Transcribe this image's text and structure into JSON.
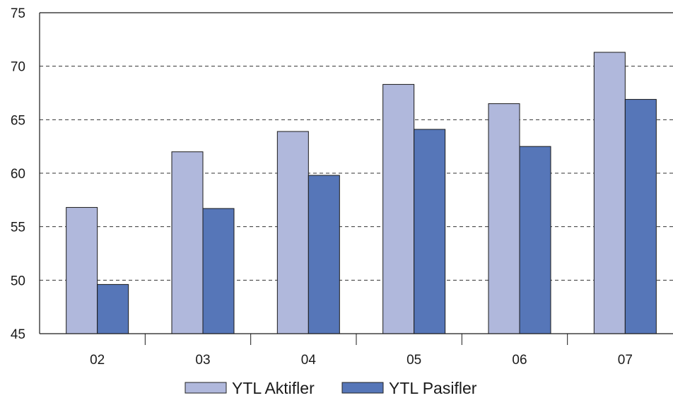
{
  "chart_data": {
    "type": "bar",
    "categories": [
      "02",
      "03",
      "04",
      "05",
      "06",
      "07"
    ],
    "series": [
      {
        "name": "YTL Aktifler",
        "values": [
          56.8,
          62.0,
          63.9,
          68.3,
          66.5,
          71.3
        ],
        "color": "#b0b8dc"
      },
      {
        "name": "YTL Pasifler",
        "values": [
          49.6,
          56.7,
          59.8,
          64.1,
          62.5,
          66.9
        ],
        "color": "#5676b8"
      }
    ],
    "yticks": [
      "45",
      "50",
      "55",
      "60",
      "65",
      "70",
      "75"
    ],
    "ylim": [
      45,
      75
    ],
    "grid": true,
    "legend_position": "bottom"
  }
}
